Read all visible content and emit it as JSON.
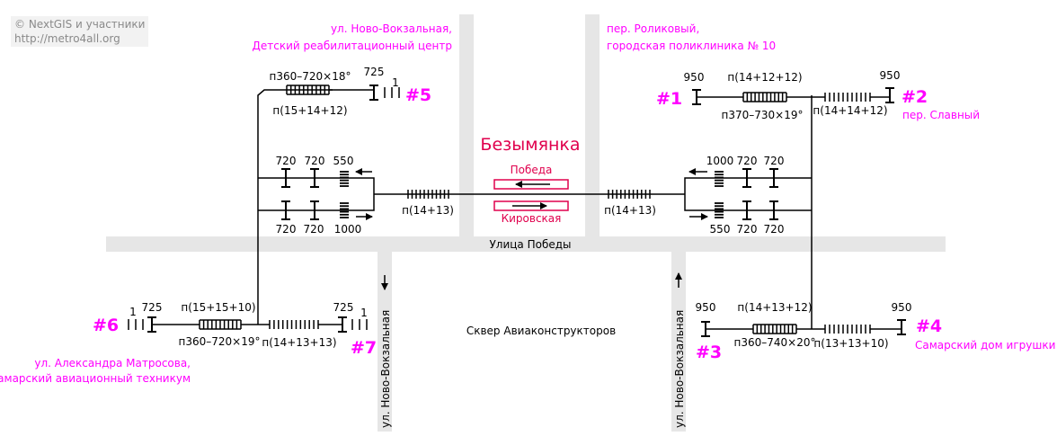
{
  "credits": {
    "line1": "© NextGIS и участники",
    "line2": "http://metro4all.org"
  },
  "station": {
    "name": "Безымянка",
    "platform_top": "Победа",
    "platform_bottom": "Кировская"
  },
  "streets": {
    "pobedy": "Улица Победы",
    "novo_vokzalnaya_left": "ул. Ново-Вокзальная",
    "novo_vokzalnaya_right": "ул. Ново-Вокзальная",
    "square": "Сквер Авиаконструкторов"
  },
  "exits": {
    "e1": {
      "number": "#1",
      "dest": ""
    },
    "e2": {
      "number": "#2",
      "dest": "пер. Славный"
    },
    "e3": {
      "number": "#3",
      "dest": ""
    },
    "e4": {
      "number": "#4",
      "dest": "Самарский дом игрушки"
    },
    "e5": {
      "number": "#5",
      "dest": ""
    },
    "e6": {
      "number": "#6",
      "dest_line1": "ул. Александра Матросова,",
      "dest_line2": "Самарский авиационный техникум"
    },
    "e7": {
      "number": "#7",
      "dest": ""
    }
  },
  "captions": {
    "top_left_line1": "ул. Ново-Вокзальная,",
    "top_left_line2": "Детский реабилитационный центр",
    "top_right_line1": "пер. Роликовый,",
    "top_right_line2": "городская поликлиника № 10"
  },
  "labels": {
    "l5_stairs_top": "п360–720×18°",
    "l5_stairs_bottom": "п(15+14+12)",
    "l5_width": "725",
    "l5_step": "1",
    "l1_width": "950",
    "l1_stairs_top": "п(14+12+12)",
    "l1_stairs_bottom": "п370–730×19°",
    "l2_width": "950",
    "l2_stairs": "п(14+14+12)",
    "lv_t1": "720",
    "lv_t2": "720",
    "lv_t3": "550",
    "lv_b1": "720",
    "lv_b2": "720",
    "lv_b3": "1000",
    "lv_stairs": "п(14+13)",
    "rv_t1": "1000",
    "rv_t2": "720",
    "rv_t3": "720",
    "rv_b1": "550",
    "rv_b2": "720",
    "rv_b3": "720",
    "rv_stairs": "п(14+13)",
    "l6_step": "1",
    "l6_width": "725",
    "l6_stairs_top": "п(15+15+10)",
    "l6_stairs_bottom": "п360–720×19°",
    "l7_stairs": "п(14+13+13)",
    "l7_width": "725",
    "l7_step": "1",
    "l3_width": "950",
    "l3_stairs_top": "п(14+13+12)",
    "l3_stairs_bottom": "п360–740×20°",
    "l4_width": "950",
    "l4_stairs": "п(13+13+10)"
  },
  "colors": {
    "accent": "#ff00ff",
    "station": "#e0004d",
    "street": "#e6e6e6",
    "line": "#000000"
  }
}
